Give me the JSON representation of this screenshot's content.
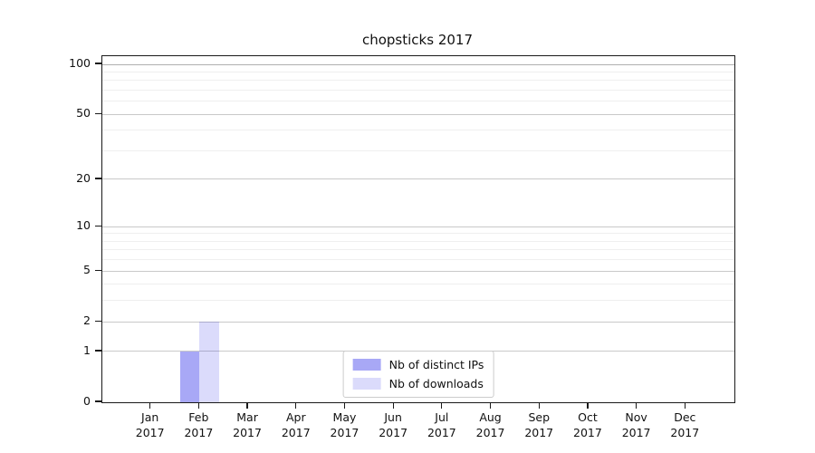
{
  "title": "chopsticks 2017",
  "chart_data": {
    "type": "bar",
    "title": "chopsticks 2017",
    "categories": [
      {
        "month": "Jan",
        "year": "2017"
      },
      {
        "month": "Feb",
        "year": "2017"
      },
      {
        "month": "Mar",
        "year": "2017"
      },
      {
        "month": "Apr",
        "year": "2017"
      },
      {
        "month": "May",
        "year": "2017"
      },
      {
        "month": "Jun",
        "year": "2017"
      },
      {
        "month": "Jul",
        "year": "2017"
      },
      {
        "month": "Aug",
        "year": "2017"
      },
      {
        "month": "Sep",
        "year": "2017"
      },
      {
        "month": "Oct",
        "year": "2017"
      },
      {
        "month": "Nov",
        "year": "2017"
      },
      {
        "month": "Dec",
        "year": "2017"
      }
    ],
    "series": [
      {
        "name": "Nb of distinct IPs",
        "color": "rgba(0,0,230,0.34)",
        "values": [
          0,
          1,
          0,
          0,
          0,
          0,
          0,
          0,
          0,
          0,
          0,
          0
        ]
      },
      {
        "name": "Nb of downloads",
        "color": "rgba(0,0,230,0.14)",
        "values": [
          0,
          2,
          0,
          0,
          0,
          0,
          0,
          0,
          0,
          0,
          0,
          0
        ]
      }
    ],
    "yscale": "log1p",
    "ylim": [
      0,
      100
    ],
    "yticks": [
      0,
      1,
      2,
      5,
      10,
      20,
      50,
      100
    ],
    "yticks_minor": [
      3,
      4,
      6,
      7,
      8,
      9,
      30,
      40,
      60,
      70,
      80,
      90
    ],
    "grid": "horizontal",
    "legend_position": "lower center"
  },
  "colors": {
    "grid_major": "#c9c9c9",
    "grid_minor": "#efefef",
    "grid_hundred": "#b0b0b0",
    "axis": "#1a1a1a",
    "legend_border": "#cccccc"
  }
}
